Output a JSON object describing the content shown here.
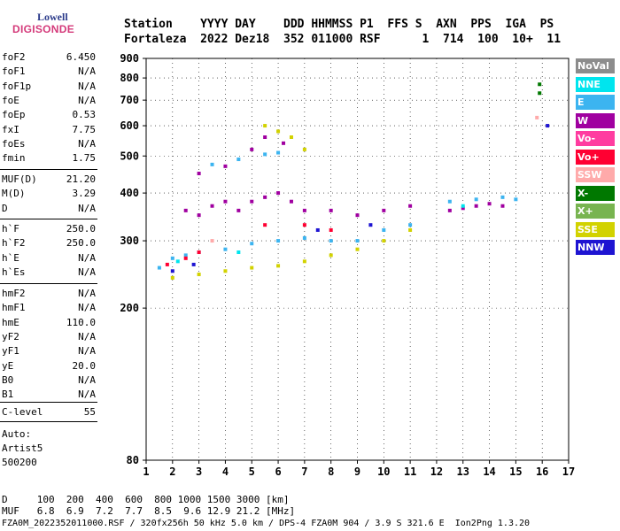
{
  "logo": {
    "top": "Lowell",
    "bottom": "DIGISONDE"
  },
  "header": {
    "labels": "Station    YYYY DAY    DDD HHMMSS P1  FFS S  AXN  PPS  IGA  PS",
    "values": "Fortaleza  2022 Dez18  352 011000 RSF      1  714  100  10+  11"
  },
  "params_group1": [
    {
      "name": "foF2",
      "value": "6.450"
    },
    {
      "name": "foF1",
      "value": "N/A"
    },
    {
      "name": "foF1p",
      "value": "N/A"
    },
    {
      "name": "foE",
      "value": "N/A"
    },
    {
      "name": "foEp",
      "value": "0.53"
    },
    {
      "name": "fxI",
      "value": "7.75"
    },
    {
      "name": "foEs",
      "value": "N/A"
    },
    {
      "name": "fmin",
      "value": "1.75"
    }
  ],
  "params_group2": [
    {
      "name": "MUF(D)",
      "value": "21.20"
    },
    {
      "name": "M(D)",
      "value": "3.29"
    },
    {
      "name": "D",
      "value": "N/A"
    }
  ],
  "params_group3": [
    {
      "name": "h`F",
      "value": "250.0"
    },
    {
      "name": "h`F2",
      "value": "250.0"
    },
    {
      "name": "h`E",
      "value": "N/A"
    },
    {
      "name": "h`Es",
      "value": "N/A"
    }
  ],
  "params_group4": [
    {
      "name": "hmF2",
      "value": "N/A"
    },
    {
      "name": "hmF1",
      "value": "N/A"
    },
    {
      "name": "hmE",
      "value": "110.0"
    },
    {
      "name": "yF2",
      "value": "N/A"
    },
    {
      "name": "yF1",
      "value": "N/A"
    },
    {
      "name": "yE",
      "value": "20.0"
    },
    {
      "name": "B0",
      "value": "N/A"
    },
    {
      "name": "B1",
      "value": "N/A"
    }
  ],
  "params_group5": [
    {
      "name": "C-level",
      "value": "55"
    }
  ],
  "auto": {
    "line1": "Auto:",
    "line2": "Artist5",
    "line3": "500200"
  },
  "legend": [
    {
      "label": "NoVal",
      "color": "#8c8c8c"
    },
    {
      "label": "NNE",
      "color": "#00e5ee"
    },
    {
      "label": "E",
      "color": "#3cb4f0"
    },
    {
      "label": "W",
      "color": "#a000a0"
    },
    {
      "label": "Vo-",
      "color": "#ff3ca0"
    },
    {
      "label": "Vo+",
      "color": "#ff0032"
    },
    {
      "label": "SSW",
      "color": "#ffaaaa"
    },
    {
      "label": "X-",
      "color": "#007800"
    },
    {
      "label": "X+",
      "color": "#78b450"
    },
    {
      "label": "SSE",
      "color": "#d2d200"
    },
    {
      "label": "NNW",
      "color": "#1e14d2"
    }
  ],
  "chart_data": {
    "type": "scatter",
    "title": "",
    "xlabel": "",
    "ylabel": "",
    "xlim": [
      1,
      17
    ],
    "ylim": [
      80,
      900
    ],
    "y_scale": "log",
    "x_ticks": [
      "1",
      "2",
      "3",
      "4",
      "5",
      "6",
      "7",
      "8",
      "9",
      "10",
      "11",
      "12",
      "13",
      "14",
      "15",
      "16",
      "17"
    ],
    "y_ticks": [
      "80",
      "200",
      "300",
      "400",
      "500",
      "600",
      "700",
      "800",
      "900"
    ],
    "grid": true,
    "legend_position": "right",
    "series": [
      {
        "name": "E",
        "color": "#3cb4f0",
        "points": [
          [
            1.5,
            255
          ],
          [
            2,
            270
          ],
          [
            2.5,
            275
          ],
          [
            3,
            280
          ],
          [
            4,
            285
          ],
          [
            5,
            295
          ],
          [
            6,
            300
          ],
          [
            7,
            305
          ],
          [
            8,
            300
          ],
          [
            9,
            300
          ],
          [
            10,
            320
          ],
          [
            11,
            330
          ],
          [
            12.5,
            380
          ],
          [
            13.5,
            385
          ],
          [
            14.5,
            390
          ],
          [
            15,
            385
          ],
          [
            3.5,
            475
          ],
          [
            4.5,
            490
          ],
          [
            5.5,
            505
          ],
          [
            6,
            510
          ]
        ]
      },
      {
        "name": "W",
        "color": "#a000a0",
        "points": [
          [
            2.5,
            360
          ],
          [
            3,
            350
          ],
          [
            3.5,
            370
          ],
          [
            4,
            380
          ],
          [
            4.5,
            360
          ],
          [
            5,
            380
          ],
          [
            5.5,
            390
          ],
          [
            6,
            400
          ],
          [
            6.5,
            380
          ],
          [
            7,
            360
          ],
          [
            8,
            360
          ],
          [
            9,
            350
          ],
          [
            10,
            360
          ],
          [
            11,
            370
          ],
          [
            12.5,
            360
          ],
          [
            13,
            365
          ],
          [
            13.5,
            370
          ],
          [
            14,
            375
          ],
          [
            14.5,
            370
          ],
          [
            3,
            450
          ],
          [
            4,
            470
          ],
          [
            5,
            520
          ],
          [
            5.5,
            560
          ],
          [
            6.2,
            540
          ]
        ]
      },
      {
        "name": "SSE",
        "color": "#d2d200",
        "points": [
          [
            2,
            240
          ],
          [
            3,
            245
          ],
          [
            4,
            250
          ],
          [
            5,
            255
          ],
          [
            6,
            258
          ],
          [
            7,
            265
          ],
          [
            8,
            275
          ],
          [
            9,
            285
          ],
          [
            10,
            300
          ],
          [
            11,
            320
          ],
          [
            5.5,
            600
          ],
          [
            6,
            580
          ],
          [
            6.5,
            560
          ],
          [
            7,
            520
          ]
        ]
      },
      {
        "name": "Vo+",
        "color": "#ff0032",
        "points": [
          [
            1.8,
            260
          ],
          [
            2.5,
            270
          ],
          [
            3,
            280
          ],
          [
            5.5,
            330
          ],
          [
            7,
            330
          ],
          [
            8,
            320
          ]
        ]
      },
      {
        "name": "NNW",
        "color": "#1e14d2",
        "points": [
          [
            2,
            250
          ],
          [
            2.8,
            260
          ],
          [
            7.5,
            320
          ],
          [
            9.5,
            330
          ],
          [
            16.2,
            600
          ]
        ]
      },
      {
        "name": "X-",
        "color": "#007800",
        "points": [
          [
            15.9,
            770
          ],
          [
            15.9,
            730
          ]
        ]
      },
      {
        "name": "NNE",
        "color": "#00e5ee",
        "points": [
          [
            2.2,
            265
          ],
          [
            4.5,
            280
          ],
          [
            13,
            370
          ]
        ]
      },
      {
        "name": "SSW",
        "color": "#ffaaaa",
        "points": [
          [
            15.8,
            630
          ],
          [
            3.5,
            300
          ]
        ]
      }
    ]
  },
  "footer": {
    "line1": "D     100  200  400  600  800 1000 1500 3000 [km]",
    "line2": "MUF   6.8  6.9  7.2  7.7  8.5  9.6 12.9 21.2 [MHz]",
    "line3": "FZA0M_2022352011000.RSF / 320fx256h 50 kHz 5.0 km / DPS-4 FZA0M 904 / 3.9 S 321.6 E  Ion2Png 1.3.20"
  }
}
